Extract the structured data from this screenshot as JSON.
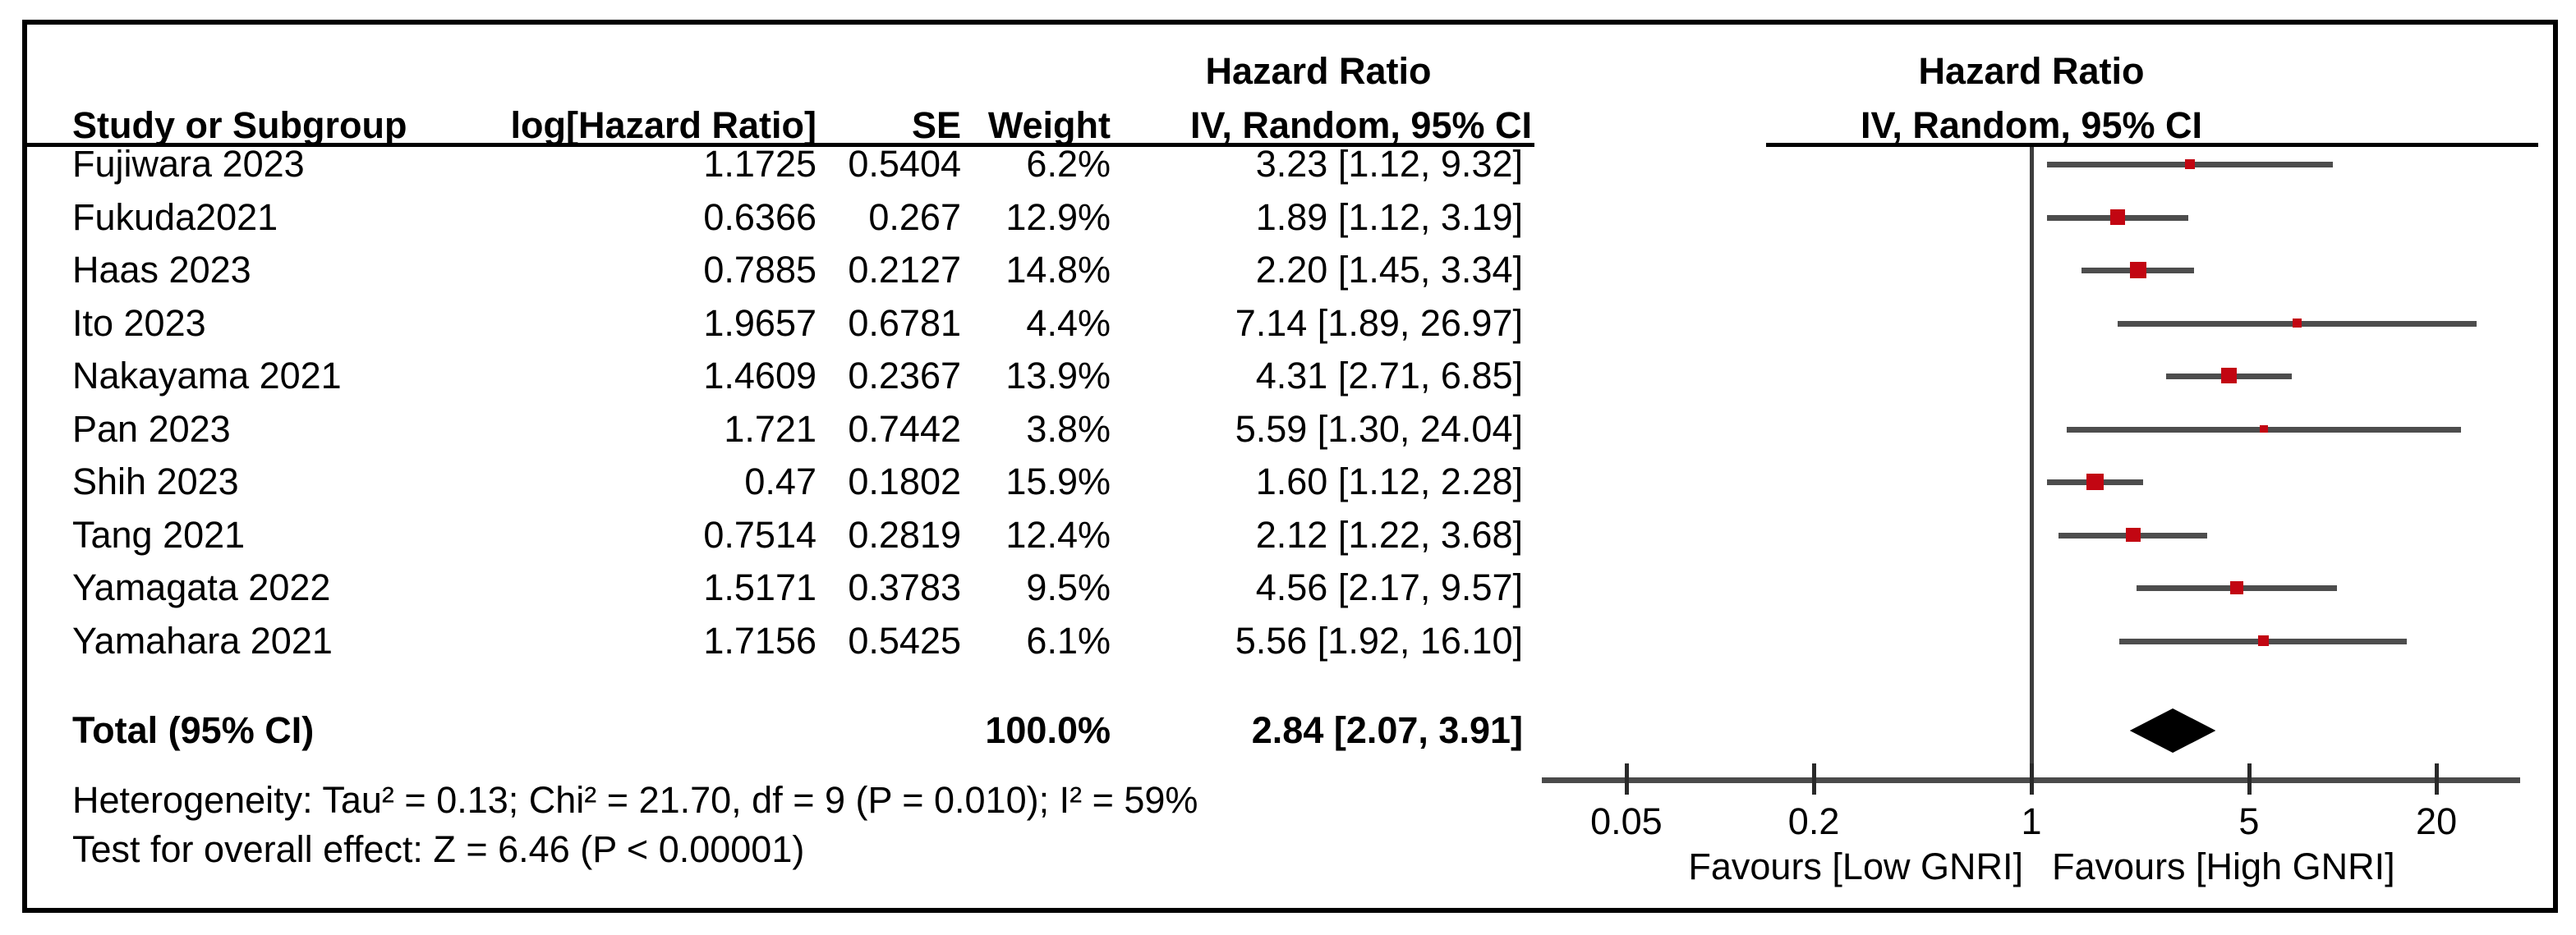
{
  "header": {
    "study_col": "Study or Subgroup",
    "loghr_col": "log[Hazard Ratio]",
    "se_col": "SE",
    "weight_col": "Weight",
    "hr_text_line1": "Hazard Ratio",
    "hr_text_line2": "IV, Random, 95% CI",
    "hr_plot_line1": "Hazard Ratio",
    "hr_plot_line2": "IV, Random, 95% CI"
  },
  "total_row": {
    "label": "Total (95% CI)",
    "weight": "100.0%",
    "hr_ci": "2.84 [2.07, 3.91]"
  },
  "footer": {
    "heterogeneity": "Heterogeneity: Tau² = 0.13; Chi² = 21.70, df = 9 (P = 0.010); I² = 59%",
    "overall_effect": "Test for overall effect: Z = 6.46 (P < 0.00001)"
  },
  "colors": {
    "square": "#c20612",
    "ci_line": "#4d4d4d",
    "diamond": "#000000",
    "axis": "#4a4a4a"
  },
  "chart_data": {
    "type": "scatter",
    "subtype": "forest_plot",
    "effect_measure": "Hazard Ratio",
    "model": "IV, Random, 95% CI",
    "x_scale": "log10",
    "x_ticks": [
      0.05,
      0.2,
      1,
      5,
      20
    ],
    "x_tick_labels": [
      "0.05",
      "0.2",
      "1",
      "5",
      "20"
    ],
    "x_range": [
      0.027,
      40
    ],
    "null_line": 1,
    "favours_left": "Favours [Low GNRI]",
    "favours_right": "Favours [High GNRI]",
    "studies": [
      {
        "name": "Fujiwara 2023",
        "log_hr": "1.1725",
        "se": "0.5404",
        "weight": "6.2%",
        "hr_ci": "3.23 [1.12, 9.32]",
        "est": 3.23,
        "lo": 1.12,
        "hi": 9.32,
        "weight_pct": 6.2
      },
      {
        "name": "Fukuda2021",
        "log_hr": "0.6366",
        "se": "0.267",
        "weight": "12.9%",
        "hr_ci": "1.89 [1.12, 3.19]",
        "est": 1.89,
        "lo": 1.12,
        "hi": 3.19,
        "weight_pct": 12.9
      },
      {
        "name": "Haas 2023",
        "log_hr": "0.7885",
        "se": "0.2127",
        "weight": "14.8%",
        "hr_ci": "2.20 [1.45, 3.34]",
        "est": 2.2,
        "lo": 1.45,
        "hi": 3.34,
        "weight_pct": 14.8
      },
      {
        "name": "Ito 2023",
        "log_hr": "1.9657",
        "se": "0.6781",
        "weight": "4.4%",
        "hr_ci": "7.14 [1.89, 26.97]",
        "est": 7.14,
        "lo": 1.89,
        "hi": 26.97,
        "weight_pct": 4.4
      },
      {
        "name": "Nakayama 2021",
        "log_hr": "1.4609",
        "se": "0.2367",
        "weight": "13.9%",
        "hr_ci": "4.31 [2.71, 6.85]",
        "est": 4.31,
        "lo": 2.71,
        "hi": 6.85,
        "weight_pct": 13.9
      },
      {
        "name": "Pan 2023",
        "log_hr": "1.721",
        "se": "0.7442",
        "weight": "3.8%",
        "hr_ci": "5.59 [1.30, 24.04]",
        "est": 5.59,
        "lo": 1.3,
        "hi": 24.04,
        "weight_pct": 3.8
      },
      {
        "name": "Shih 2023",
        "log_hr": "0.47",
        "se": "0.1802",
        "weight": "15.9%",
        "hr_ci": "1.60 [1.12, 2.28]",
        "est": 1.6,
        "lo": 1.12,
        "hi": 2.28,
        "weight_pct": 15.9
      },
      {
        "name": "Tang 2021",
        "log_hr": "0.7514",
        "se": "0.2819",
        "weight": "12.4%",
        "hr_ci": "2.12 [1.22, 3.68]",
        "est": 2.12,
        "lo": 1.22,
        "hi": 3.68,
        "weight_pct": 12.4
      },
      {
        "name": "Yamagata 2022",
        "log_hr": "1.5171",
        "se": "0.3783",
        "weight": "9.5%",
        "hr_ci": "4.56 [2.17, 9.57]",
        "est": 4.56,
        "lo": 2.17,
        "hi": 9.57,
        "weight_pct": 9.5
      },
      {
        "name": "Yamahara 2021",
        "log_hr": "1.7156",
        "se": "0.5425",
        "weight": "6.1%",
        "hr_ci": "5.56 [1.92, 16.10]",
        "est": 5.56,
        "lo": 1.92,
        "hi": 16.1,
        "weight_pct": 6.1
      }
    ],
    "total": {
      "est": 2.84,
      "lo": 2.07,
      "hi": 3.91,
      "weight_pct": 100.0
    }
  }
}
